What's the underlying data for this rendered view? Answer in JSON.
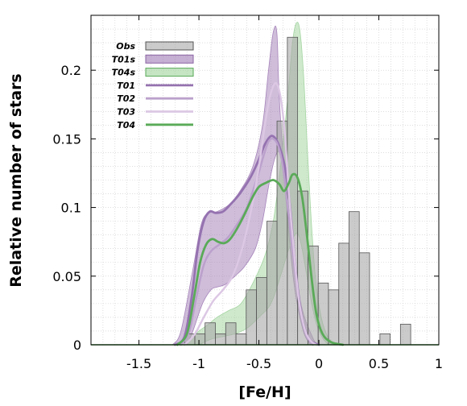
{
  "chart_data": {
    "type": "area",
    "xlabel": "[Fe/H]",
    "ylabel": "Relative number of stars",
    "xlim": [
      -1.9,
      1.0
    ],
    "ylim": [
      0,
      0.24
    ],
    "xticks": [
      {
        "value": -1.5,
        "label": "-1.5"
      },
      {
        "value": -1.0,
        "label": "-1"
      },
      {
        "value": -0.5,
        "label": "-0.5"
      },
      {
        "value": 0.0,
        "label": "0"
      },
      {
        "value": 0.5,
        "label": "0.5"
      },
      {
        "value": 1.0,
        "label": "1"
      }
    ],
    "yticks": [
      {
        "value": 0,
        "label": "0"
      },
      {
        "value": 0.05,
        "label": "0.05"
      },
      {
        "value": 0.1,
        "label": "0.1"
      },
      {
        "value": 0.15,
        "label": "0.15"
      },
      {
        "value": 0.2,
        "label": "0.2"
      }
    ],
    "grid": true,
    "legend_position": "top-left",
    "histogram": {
      "name": "Obs",
      "bin_width": 0.0857,
      "bins": [
        {
          "x0": -1.12,
          "y": 0.008
        },
        {
          "x0": -1.034,
          "y": 0.008
        },
        {
          "x0": -0.949,
          "y": 0.016
        },
        {
          "x0": -0.863,
          "y": 0.008
        },
        {
          "x0": -0.777,
          "y": 0.016
        },
        {
          "x0": -0.691,
          "y": 0.008
        },
        {
          "x0": -0.606,
          "y": 0.04
        },
        {
          "x0": -0.52,
          "y": 0.049
        },
        {
          "x0": -0.434,
          "y": 0.09
        },
        {
          "x0": -0.349,
          "y": 0.163
        },
        {
          "x0": -0.263,
          "y": 0.224
        },
        {
          "x0": -0.177,
          "y": 0.112
        },
        {
          "x0": -0.091,
          "y": 0.072
        },
        {
          "x0": -0.006,
          "y": 0.045
        },
        {
          "x0": 0.08,
          "y": 0.04
        },
        {
          "x0": 0.166,
          "y": 0.074
        },
        {
          "x0": 0.251,
          "y": 0.097
        },
        {
          "x0": 0.337,
          "y": 0.067
        },
        {
          "x0": 0.509,
          "y": 0.008
        },
        {
          "x0": 0.68,
          "y": 0.015
        }
      ],
      "fill": "#a9a9a9",
      "stroke": "#555555"
    },
    "bands": [
      {
        "name": "T01s",
        "fill": "#a07bb5",
        "upper": [
          [
            -1.22,
            0
          ],
          [
            -1.15,
            0.01
          ],
          [
            -1.05,
            0.055
          ],
          [
            -0.98,
            0.088
          ],
          [
            -0.92,
            0.096
          ],
          [
            -0.85,
            0.097
          ],
          [
            -0.75,
            0.102
          ],
          [
            -0.65,
            0.113
          ],
          [
            -0.55,
            0.13
          ],
          [
            -0.47,
            0.16
          ],
          [
            -0.42,
            0.2
          ],
          [
            -0.38,
            0.228
          ],
          [
            -0.35,
            0.227
          ],
          [
            -0.33,
            0.18
          ],
          [
            -0.29,
            0.13
          ],
          [
            -0.23,
            0.08
          ],
          [
            -0.15,
            0.03
          ],
          [
            -0.05,
            0.005
          ],
          [
            0.0,
            0
          ]
        ],
        "lower": [
          [
            -1.1,
            0
          ],
          [
            -1.05,
            0.01
          ],
          [
            -0.97,
            0.03
          ],
          [
            -0.9,
            0.04
          ],
          [
            -0.85,
            0.042
          ],
          [
            -0.78,
            0.044
          ],
          [
            -0.7,
            0.05
          ],
          [
            -0.62,
            0.057
          ],
          [
            -0.53,
            0.07
          ],
          [
            -0.47,
            0.09
          ],
          [
            -0.42,
            0.115
          ],
          [
            -0.37,
            0.135
          ],
          [
            -0.33,
            0.14
          ],
          [
            -0.29,
            0.12
          ],
          [
            -0.25,
            0.08
          ],
          [
            -0.2,
            0.04
          ],
          [
            -0.13,
            0.01
          ],
          [
            -0.07,
            0
          ]
        ]
      },
      {
        "name": "T04s",
        "fill": "#9fd39b",
        "upper": [
          [
            -1.12,
            0
          ],
          [
            -1.06,
            0.005
          ],
          [
            -1.0,
            0.01
          ],
          [
            -0.92,
            0.015
          ],
          [
            -0.85,
            0.02
          ],
          [
            -0.75,
            0.025
          ],
          [
            -0.65,
            0.03
          ],
          [
            -0.55,
            0.045
          ],
          [
            -0.45,
            0.065
          ],
          [
            -0.38,
            0.09
          ],
          [
            -0.32,
            0.13
          ],
          [
            -0.26,
            0.18
          ],
          [
            -0.22,
            0.22
          ],
          [
            -0.19,
            0.234
          ],
          [
            -0.16,
            0.23
          ],
          [
            -0.13,
            0.2
          ],
          [
            -0.1,
            0.15
          ],
          [
            -0.07,
            0.1
          ],
          [
            -0.03,
            0.05
          ],
          [
            0.02,
            0.02
          ],
          [
            0.08,
            0.005
          ],
          [
            0.15,
            0
          ]
        ],
        "lower": [
          [
            -1.0,
            0
          ],
          [
            -0.9,
            0.004
          ],
          [
            -0.8,
            0.006
          ],
          [
            -0.7,
            0.008
          ],
          [
            -0.6,
            0.012
          ],
          [
            -0.5,
            0.02
          ],
          [
            -0.4,
            0.03
          ],
          [
            -0.32,
            0.05
          ],
          [
            -0.25,
            0.07
          ],
          [
            -0.2,
            0.08
          ],
          [
            -0.17,
            0.08
          ],
          [
            -0.14,
            0.07
          ],
          [
            -0.1,
            0.05
          ],
          [
            -0.06,
            0.03
          ],
          [
            -0.02,
            0.015
          ],
          [
            0.03,
            0.005
          ],
          [
            0.08,
            0
          ]
        ]
      }
    ],
    "series": [
      {
        "name": "T01",
        "color": "#9572b0",
        "width": 2.8,
        "points": [
          [
            -1.2,
            0
          ],
          [
            -1.12,
            0.006
          ],
          [
            -1.06,
            0.035
          ],
          [
            -1.01,
            0.07
          ],
          [
            -0.96,
            0.09
          ],
          [
            -0.91,
            0.097
          ],
          [
            -0.86,
            0.096
          ],
          [
            -0.8,
            0.097
          ],
          [
            -0.74,
            0.102
          ],
          [
            -0.66,
            0.11
          ],
          [
            -0.57,
            0.122
          ],
          [
            -0.5,
            0.135
          ],
          [
            -0.45,
            0.146
          ],
          [
            -0.4,
            0.152
          ],
          [
            -0.36,
            0.15
          ],
          [
            -0.32,
            0.142
          ],
          [
            -0.28,
            0.128
          ],
          [
            -0.24,
            0.1
          ],
          [
            -0.2,
            0.06
          ],
          [
            -0.16,
            0.03
          ],
          [
            -0.12,
            0.012
          ],
          [
            -0.07,
            0.003
          ],
          [
            0.0,
            0
          ]
        ]
      },
      {
        "name": "T02",
        "color": "#bba0cc",
        "width": 2.4,
        "points": [
          [
            -1.15,
            0
          ],
          [
            -1.08,
            0.01
          ],
          [
            -1.02,
            0.035
          ],
          [
            -0.96,
            0.058
          ],
          [
            -0.9,
            0.068
          ],
          [
            -0.83,
            0.073
          ],
          [
            -0.76,
            0.078
          ],
          [
            -0.68,
            0.088
          ],
          [
            -0.6,
            0.1
          ],
          [
            -0.52,
            0.12
          ],
          [
            -0.46,
            0.138
          ],
          [
            -0.42,
            0.148
          ],
          [
            -0.38,
            0.15
          ],
          [
            -0.34,
            0.145
          ],
          [
            -0.3,
            0.13
          ],
          [
            -0.26,
            0.1
          ],
          [
            -0.22,
            0.07
          ],
          [
            -0.18,
            0.04
          ],
          [
            -0.14,
            0.018
          ],
          [
            -0.1,
            0.006
          ],
          [
            -0.05,
            0
          ]
        ]
      },
      {
        "name": "T03",
        "color": "#dcc7e4",
        "width": 2.4,
        "points": [
          [
            -1.12,
            0
          ],
          [
            -1.04,
            0.007
          ],
          [
            -0.96,
            0.02
          ],
          [
            -0.88,
            0.032
          ],
          [
            -0.8,
            0.04
          ],
          [
            -0.72,
            0.05
          ],
          [
            -0.64,
            0.07
          ],
          [
            -0.56,
            0.1
          ],
          [
            -0.5,
            0.13
          ],
          [
            -0.45,
            0.16
          ],
          [
            -0.41,
            0.18
          ],
          [
            -0.37,
            0.19
          ],
          [
            -0.34,
            0.188
          ],
          [
            -0.31,
            0.175
          ],
          [
            -0.28,
            0.15
          ],
          [
            -0.25,
            0.11
          ],
          [
            -0.21,
            0.07
          ],
          [
            -0.17,
            0.035
          ],
          [
            -0.12,
            0.012
          ],
          [
            -0.07,
            0.003
          ],
          [
            -0.02,
            0
          ]
        ]
      },
      {
        "name": "T04",
        "color": "#5aaa58",
        "width": 2.8,
        "points": [
          [
            -1.18,
            0
          ],
          [
            -1.1,
            0.008
          ],
          [
            -1.04,
            0.035
          ],
          [
            -0.99,
            0.06
          ],
          [
            -0.94,
            0.073
          ],
          [
            -0.89,
            0.077
          ],
          [
            -0.84,
            0.075
          ],
          [
            -0.79,
            0.074
          ],
          [
            -0.74,
            0.077
          ],
          [
            -0.68,
            0.085
          ],
          [
            -0.62,
            0.095
          ],
          [
            -0.55,
            0.108
          ],
          [
            -0.5,
            0.115
          ],
          [
            -0.44,
            0.118
          ],
          [
            -0.38,
            0.12
          ],
          [
            -0.33,
            0.117
          ],
          [
            -0.29,
            0.112
          ],
          [
            -0.25,
            0.118
          ],
          [
            -0.22,
            0.124
          ],
          [
            -0.18,
            0.122
          ],
          [
            -0.14,
            0.108
          ],
          [
            -0.1,
            0.08
          ],
          [
            -0.06,
            0.048
          ],
          [
            -0.02,
            0.022
          ],
          [
            0.03,
            0.008
          ],
          [
            0.1,
            0.002
          ],
          [
            0.2,
            0
          ]
        ]
      }
    ],
    "legend": [
      {
        "name": "Obs",
        "kind": "box",
        "color": "#a9a9a9",
        "stroke": "#555555"
      },
      {
        "name": "T01s",
        "kind": "box",
        "color": "#a07bb5",
        "stroke": "#8a63a3"
      },
      {
        "name": "T04s",
        "kind": "box",
        "color": "#9fd39b",
        "stroke": "#5aaa58"
      },
      {
        "name": "T01",
        "kind": "line",
        "color": "#9572b0"
      },
      {
        "name": "T02",
        "kind": "line",
        "color": "#bba0cc"
      },
      {
        "name": "T03",
        "kind": "line",
        "color": "#dcc7e4"
      },
      {
        "name": "T04",
        "kind": "line",
        "color": "#5aaa58"
      }
    ]
  }
}
